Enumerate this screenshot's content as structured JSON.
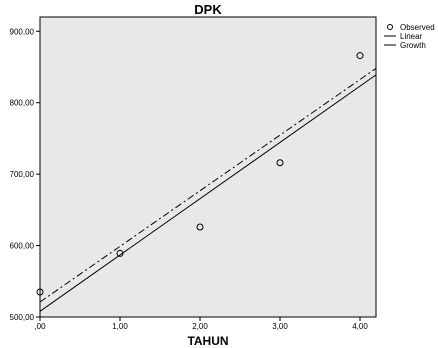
{
  "chart_data": {
    "type": "scatter",
    "title": "DPK",
    "xlabel": "TAHUN",
    "ylabel": "",
    "xlim": [
      0,
      4.2
    ],
    "ylim": [
      500,
      920
    ],
    "x_ticks": [
      0,
      1,
      2,
      3,
      4
    ],
    "x_tick_labels": [
      ",00",
      "1,00",
      "2,00",
      "3,00",
      "4,00"
    ],
    "y_ticks": [
      500,
      600,
      700,
      800,
      900
    ],
    "y_tick_labels": [
      "500,00",
      "600,00",
      "700,00",
      "800,00",
      "900,00"
    ],
    "grid": false,
    "legend_position": "right",
    "legend": [
      "Observed",
      "Linear",
      "Growth"
    ],
    "series": [
      {
        "name": "Observed",
        "kind": "points",
        "x": [
          0,
          1,
          2,
          3,
          4
        ],
        "y": [
          535,
          589,
          626,
          716,
          866
        ]
      },
      {
        "name": "Linear",
        "kind": "line",
        "x": [
          0,
          4.2
        ],
        "y": [
          508,
          839
        ]
      },
      {
        "name": "Growth",
        "kind": "dashdot",
        "x": [
          0,
          4.2
        ],
        "y": [
          521,
          848
        ]
      }
    ],
    "colors": {
      "plot_background": "#e8e8e8",
      "marks": "#000000"
    }
  }
}
